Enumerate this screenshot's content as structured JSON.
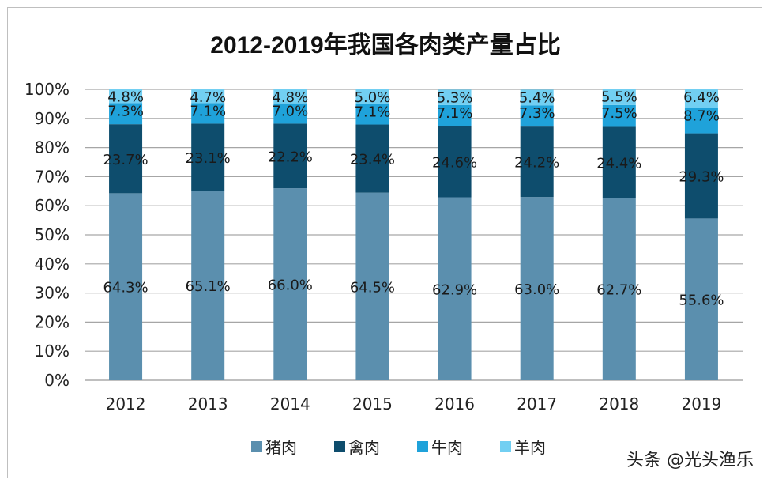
{
  "chart_data": {
    "type": "bar",
    "stacked": true,
    "title": "2012-2019年我国各肉类产量占比",
    "categories": [
      "2012",
      "2013",
      "2014",
      "2015",
      "2016",
      "2017",
      "2018",
      "2019"
    ],
    "series": [
      {
        "name": "猪肉",
        "color": "#5b8fae",
        "values": [
          64.3,
          65.1,
          66.0,
          64.5,
          62.9,
          63.0,
          62.7,
          55.6
        ]
      },
      {
        "name": "禽肉",
        "color": "#0e4d6d",
        "values": [
          23.7,
          23.1,
          22.2,
          23.4,
          24.6,
          24.2,
          24.4,
          29.3
        ]
      },
      {
        "name": "牛肉",
        "color": "#1fa2da",
        "values": [
          7.3,
          7.1,
          7.0,
          7.1,
          7.1,
          7.3,
          7.5,
          8.7
        ]
      },
      {
        "name": "羊肉",
        "color": "#72cff2",
        "values": [
          4.8,
          4.7,
          4.8,
          5.0,
          5.3,
          5.4,
          5.5,
          6.4
        ]
      }
    ],
    "yticks": [
      "0%",
      "10%",
      "20%",
      "30%",
      "40%",
      "50%",
      "60%",
      "70%",
      "80%",
      "90%",
      "100%"
    ],
    "ylim": [
      0,
      100
    ],
    "grid": true,
    "legend": "bottom"
  },
  "watermark": "头条 @光头渔乐"
}
